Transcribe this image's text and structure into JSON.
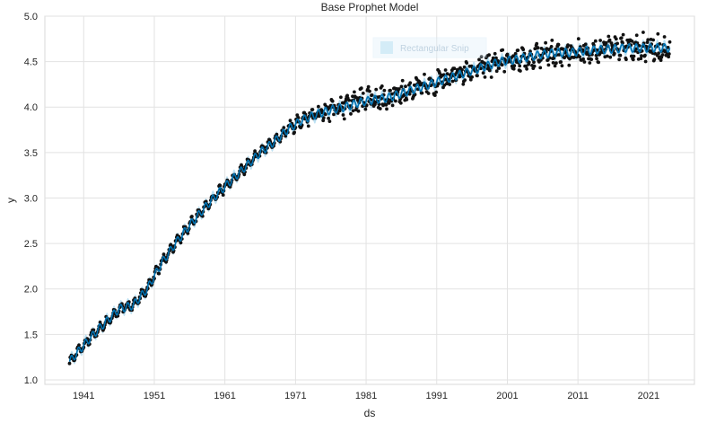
{
  "chart_data": {
    "type": "scatter",
    "title": "Base Prophet Model",
    "xlabel": "ds",
    "ylabel": "y",
    "xlim": [
      1935.5,
      2027.5
    ],
    "ylim": [
      0.95,
      5.0
    ],
    "xticks": [
      1941,
      1951,
      1961,
      1971,
      1981,
      1991,
      2001,
      2011,
      2021
    ],
    "yticks": [
      1.0,
      1.5,
      2.0,
      2.5,
      3.0,
      3.5,
      4.0,
      4.5,
      5.0
    ],
    "grid": true,
    "legend": {
      "placement": "top-center",
      "label": "Rectangular Snip"
    },
    "series": [
      {
        "role": "observed",
        "style": "points",
        "color": "#111111",
        "x": [
          1939,
          1941,
          1943,
          1945,
          1946,
          1947,
          1948,
          1950,
          1952,
          1954,
          1956,
          1958,
          1960,
          1962,
          1964,
          1966,
          1968,
          1970,
          1972,
          1974,
          1976,
          1978,
          1980,
          1982,
          1984,
          1986,
          1988,
          1990,
          1992,
          1994,
          1996,
          1998,
          2000,
          2002,
          2004,
          2006,
          2008,
          2010,
          2012,
          2014,
          2016,
          2018,
          2020,
          2022,
          2024
        ],
        "y": [
          1.2,
          1.38,
          1.55,
          1.7,
          1.78,
          1.8,
          1.82,
          2.0,
          2.28,
          2.5,
          2.7,
          2.88,
          3.05,
          3.2,
          3.35,
          3.5,
          3.62,
          3.76,
          3.86,
          3.92,
          3.97,
          4.0,
          4.05,
          4.08,
          4.1,
          4.15,
          4.2,
          4.25,
          4.3,
          4.35,
          4.4,
          4.45,
          4.5,
          4.52,
          4.55,
          4.58,
          4.6,
          4.6,
          4.62,
          4.63,
          4.64,
          4.65,
          4.65,
          4.65,
          4.65
        ],
        "spread": [
          0.02,
          0.03,
          0.03,
          0.03,
          0.03,
          0.03,
          0.03,
          0.03,
          0.03,
          0.03,
          0.03,
          0.03,
          0.03,
          0.03,
          0.03,
          0.03,
          0.03,
          0.04,
          0.05,
          0.07,
          0.09,
          0.11,
          0.12,
          0.12,
          0.11,
          0.1,
          0.1,
          0.1,
          0.1,
          0.1,
          0.1,
          0.1,
          0.1,
          0.1,
          0.1,
          0.11,
          0.11,
          0.12,
          0.12,
          0.12,
          0.12,
          0.13,
          0.13,
          0.13,
          0.13
        ]
      },
      {
        "role": "forecast",
        "style": "line",
        "color": "#0072B2",
        "band_color": "#87c9ea",
        "x": [
          1939,
          1941,
          1943,
          1945,
          1946,
          1947,
          1948,
          1950,
          1952,
          1954,
          1956,
          1958,
          1960,
          1962,
          1964,
          1966,
          1968,
          1970,
          1972,
          1974,
          1976,
          1978,
          1980,
          1982,
          1984,
          1986,
          1988,
          1990,
          1992,
          1994,
          1996,
          1998,
          2000,
          2002,
          2004,
          2006,
          2008,
          2010,
          2012,
          2014,
          2016,
          2018,
          2020,
          2022,
          2024
        ],
        "y": [
          1.2,
          1.38,
          1.55,
          1.7,
          1.78,
          1.8,
          1.82,
          2.0,
          2.28,
          2.5,
          2.7,
          2.88,
          3.05,
          3.2,
          3.35,
          3.5,
          3.62,
          3.76,
          3.86,
          3.92,
          3.97,
          4.0,
          4.05,
          4.08,
          4.1,
          4.15,
          4.2,
          4.25,
          4.3,
          4.35,
          4.4,
          4.45,
          4.5,
          4.52,
          4.55,
          4.58,
          4.6,
          4.6,
          4.62,
          4.63,
          4.64,
          4.65,
          4.65,
          4.65,
          4.65
        ],
        "band_halfwidth": 0.05,
        "seasonal_amplitude": 0.045
      }
    ]
  }
}
